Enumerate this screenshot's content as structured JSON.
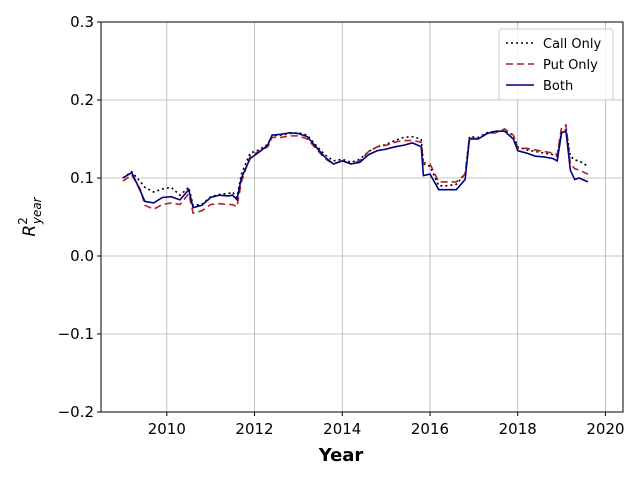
{
  "chart_data": {
    "type": "line",
    "xlabel": "Year",
    "ylabel": {
      "base": "R",
      "sup": "2",
      "sub": "year"
    },
    "x": [
      2009.0,
      2009.2,
      2009.4,
      2009.5,
      2009.7,
      2009.9,
      2010.1,
      2010.3,
      2010.5,
      2010.6,
      2010.8,
      2011.0,
      2011.2,
      2011.4,
      2011.5,
      2011.6,
      2011.7,
      2011.9,
      2012.1,
      2012.3,
      2012.4,
      2012.6,
      2012.8,
      2013.0,
      2013.2,
      2013.4,
      2013.6,
      2013.8,
      2014.0,
      2014.2,
      2014.4,
      2014.6,
      2014.8,
      2015.0,
      2015.2,
      2015.4,
      2015.6,
      2015.8,
      2015.85,
      2016.0,
      2016.2,
      2016.4,
      2016.6,
      2016.8,
      2016.9,
      2017.1,
      2017.3,
      2017.5,
      2017.7,
      2017.9,
      2018.0,
      2018.2,
      2018.4,
      2018.6,
      2018.8,
      2018.9,
      2019.0,
      2019.1,
      2019.2,
      2019.3,
      2019.4,
      2019.6
    ],
    "series": [
      {
        "name": "Call Only",
        "color": "#000000",
        "linestyle": "dotted",
        "values": [
          0.1,
          0.108,
          0.095,
          0.088,
          0.082,
          0.086,
          0.088,
          0.078,
          0.088,
          0.065,
          0.066,
          0.076,
          0.079,
          0.08,
          0.082,
          0.075,
          0.105,
          0.132,
          0.136,
          0.143,
          0.154,
          0.155,
          0.157,
          0.158,
          0.155,
          0.142,
          0.13,
          0.122,
          0.124,
          0.12,
          0.124,
          0.134,
          0.14,
          0.143,
          0.148,
          0.152,
          0.153,
          0.15,
          0.118,
          0.115,
          0.09,
          0.09,
          0.092,
          0.105,
          0.153,
          0.152,
          0.158,
          0.16,
          0.16,
          0.155,
          0.14,
          0.136,
          0.134,
          0.132,
          0.13,
          0.128,
          0.16,
          0.162,
          0.128,
          0.123,
          0.122,
          0.115
        ]
      },
      {
        "name": "Put Only",
        "color": "#b22222",
        "linestyle": "dashed",
        "values": [
          0.096,
          0.104,
          0.085,
          0.065,
          0.06,
          0.066,
          0.068,
          0.066,
          0.08,
          0.055,
          0.058,
          0.066,
          0.067,
          0.066,
          0.066,
          0.063,
          0.095,
          0.128,
          0.134,
          0.14,
          0.152,
          0.152,
          0.154,
          0.154,
          0.15,
          0.138,
          0.125,
          0.118,
          0.122,
          0.118,
          0.122,
          0.134,
          0.14,
          0.142,
          0.146,
          0.148,
          0.148,
          0.146,
          0.12,
          0.118,
          0.095,
          0.095,
          0.095,
          0.105,
          0.152,
          0.15,
          0.157,
          0.158,
          0.163,
          0.155,
          0.138,
          0.138,
          0.136,
          0.134,
          0.132,
          0.13,
          0.165,
          0.168,
          0.118,
          0.112,
          0.11,
          0.105
        ]
      },
      {
        "name": "Both",
        "color": "#000080",
        "linestyle": "solid",
        "values": [
          0.1,
          0.107,
          0.083,
          0.07,
          0.068,
          0.075,
          0.076,
          0.072,
          0.085,
          0.062,
          0.065,
          0.075,
          0.078,
          0.077,
          0.078,
          0.072,
          0.1,
          0.125,
          0.133,
          0.142,
          0.155,
          0.156,
          0.158,
          0.157,
          0.153,
          0.14,
          0.127,
          0.118,
          0.122,
          0.118,
          0.12,
          0.13,
          0.135,
          0.137,
          0.14,
          0.142,
          0.145,
          0.14,
          0.103,
          0.105,
          0.085,
          0.085,
          0.085,
          0.098,
          0.15,
          0.15,
          0.157,
          0.16,
          0.16,
          0.15,
          0.135,
          0.132,
          0.128,
          0.127,
          0.125,
          0.122,
          0.158,
          0.16,
          0.11,
          0.098,
          0.1,
          0.095
        ]
      }
    ],
    "xlim": [
      2008.5,
      2020.4
    ],
    "ylim": [
      -0.2,
      0.3
    ],
    "xticks": [
      2010,
      2012,
      2014,
      2016,
      2018,
      2020
    ],
    "yticks": [
      {
        "value": -0.2,
        "label": "−0.2"
      },
      {
        "value": -0.1,
        "label": "−0.1"
      },
      {
        "value": 0,
        "label": "0.0"
      },
      0.1,
      0.2,
      0.3
    ],
    "grid": true,
    "legend": "upper-right"
  }
}
